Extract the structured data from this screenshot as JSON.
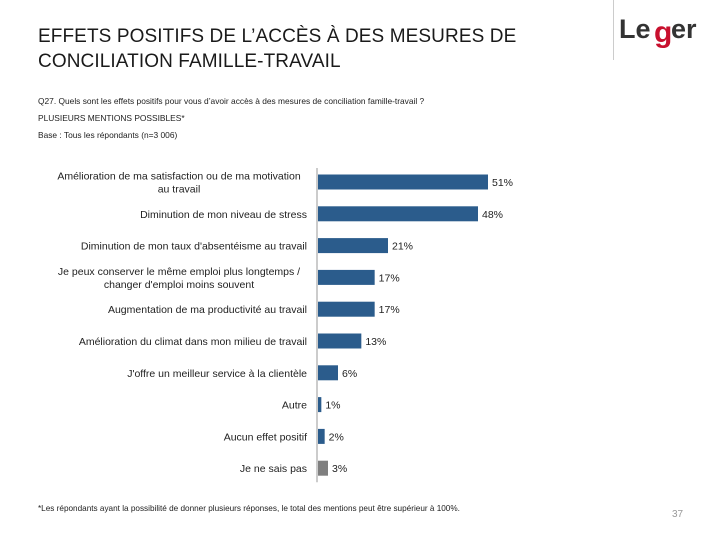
{
  "slide": {
    "title_line1": "EFFETS POSITIFS DE L’ACCÈS À DES MESURES DE",
    "title_line2": "CONCILIATION FAMILLE-TRAVAIL",
    "question": "Q27. Quels sont les effets positifs pour vous d’avoir accès à des mesures de conciliation famille-travail ?",
    "mentions": "PLUSIEURS MENTIONS POSSIBLES*",
    "base": "Base : Tous les répondants (n=3 006)",
    "footnote": "*Les répondants ayant la possibilité de donner plusieurs réponses, le total des mentions peut être supérieur à 100%.",
    "page_number": "37",
    "logo_text": "Leger"
  },
  "colors": {
    "bar": "#2b5c8c",
    "bar_gray": "#7f7f7f",
    "logo_red": "#c8102e",
    "logo_text": "#333333"
  },
  "chart_data": {
    "type": "bar",
    "orientation": "horizontal",
    "categories": [
      [
        "Amélioration de ma satisfaction ou de ma motivation",
        "au travail"
      ],
      [
        "Diminution de mon niveau de stress"
      ],
      [
        "Diminution de mon taux d'absentéisme au travail"
      ],
      [
        "Je peux conserver le même emploi plus longtemps /",
        "changer d'emploi moins souvent"
      ],
      [
        "Augmentation de ma productivité au travail"
      ],
      [
        "Amélioration du climat dans mon milieu de travail"
      ],
      [
        "J'offre un meilleur service à la clientèle"
      ],
      [
        "Autre"
      ],
      [
        "Aucun effet positif"
      ],
      [
        "Je ne sais pas"
      ]
    ],
    "values": [
      51,
      48,
      21,
      17,
      17,
      13,
      6,
      1,
      2,
      3
    ],
    "value_labels": [
      "51%",
      "48%",
      "21%",
      "17%",
      "17%",
      "13%",
      "6%",
      "1%",
      "2%",
      "3%"
    ],
    "gray_categories": [
      9
    ],
    "xlim": [
      0,
      53
    ],
    "unit": "%"
  }
}
